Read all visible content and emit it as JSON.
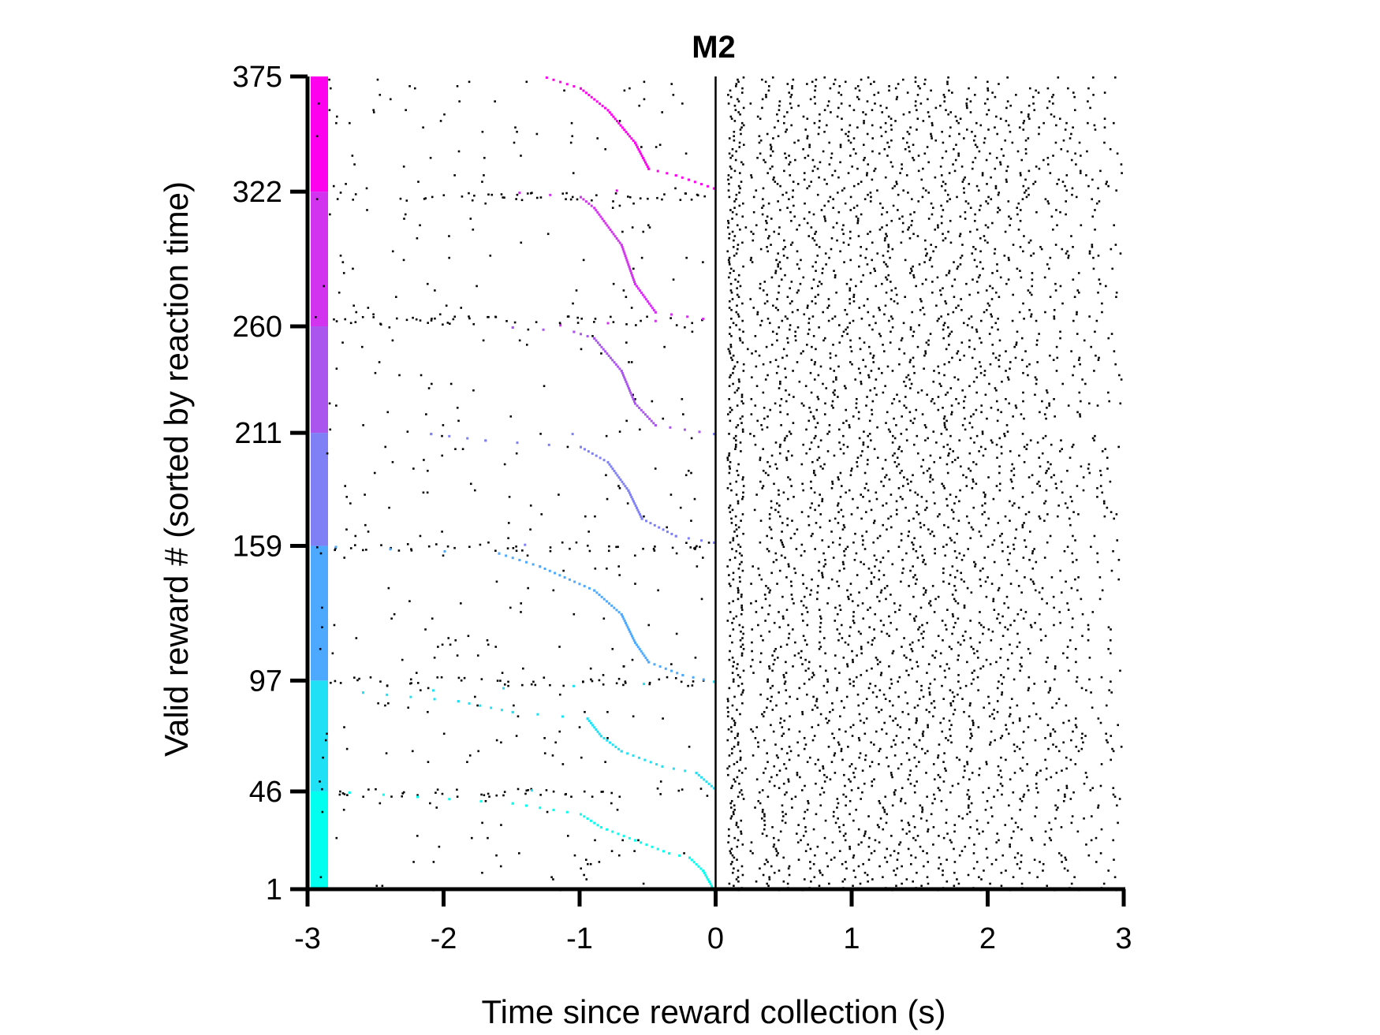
{
  "chart_data": {
    "type": "scatter",
    "title": "M2",
    "xlabel": "Time since reward collection (s)",
    "ylabel": "Valid reward # (sorted by reaction time)",
    "xlim": [
      -3,
      3
    ],
    "ylim": [
      1,
      375
    ],
    "x_ticks": [
      -3,
      -2,
      -1,
      0,
      1,
      2,
      3
    ],
    "x_tick_labels": [
      "-3",
      "-2",
      "-1",
      "0",
      "1",
      "2",
      "3"
    ],
    "y_ticks": [
      1,
      46,
      97,
      159,
      211,
      260,
      322,
      375
    ],
    "y_tick_labels": [
      "1",
      "46",
      "97",
      "159",
      "211",
      "260",
      "322",
      "375"
    ],
    "reference_line_x": 0,
    "grid": false,
    "legend": "none",
    "color_bar": {
      "position": "left edge of plot",
      "segments": [
        {
          "from": 1,
          "to": 46,
          "color": "#00ffee"
        },
        {
          "from": 46,
          "to": 97,
          "color": "#1fe0f5"
        },
        {
          "from": 97,
          "to": 159,
          "color": "#4da9ff"
        },
        {
          "from": 159,
          "to": 211,
          "color": "#7f7ff6"
        },
        {
          "from": 211,
          "to": 260,
          "color": "#aa55ee"
        },
        {
          "from": 260,
          "to": 322,
          "color": "#d233ee"
        },
        {
          "from": 322,
          "to": 375,
          "color": "#ff00ee"
        }
      ]
    },
    "series": [
      {
        "color": "#000000",
        "description_points": "spike raster; dense after x=0, sparse before",
        "x_range": [
          -3,
          3
        ],
        "y_range": [
          1,
          375
        ]
      }
    ],
    "event_curve": {
      "note": "colored points mark preceding event time per trial",
      "points": [
        [
          -0.02,
          1
        ],
        [
          -0.1,
          10
        ],
        [
          -0.2,
          16
        ],
        [
          -0.35,
          18
        ],
        [
          -0.6,
          24
        ],
        [
          -0.85,
          30
        ],
        [
          -1.0,
          36
        ],
        [
          -1.5,
          41
        ],
        [
          -2.2,
          44
        ],
        [
          -2.7,
          46
        ],
        [
          -0.02,
          48
        ],
        [
          -0.15,
          55
        ],
        [
          -0.4,
          58
        ],
        [
          -0.7,
          65
        ],
        [
          -0.85,
          72
        ],
        [
          -0.95,
          80
        ],
        [
          -1.5,
          83
        ],
        [
          -1.9,
          88
        ],
        [
          -2.6,
          92
        ],
        [
          -0.02,
          97
        ],
        [
          -0.25,
          100
        ],
        [
          -0.5,
          106
        ],
        [
          -0.6,
          115
        ],
        [
          -0.7,
          128
        ],
        [
          -0.9,
          139
        ],
        [
          -1.3,
          150
        ],
        [
          -1.6,
          156
        ],
        [
          -2.8,
          159
        ],
        [
          -0.02,
          161
        ],
        [
          -0.3,
          164
        ],
        [
          -0.55,
          172
        ],
        [
          -0.65,
          185
        ],
        [
          -0.8,
          198
        ],
        [
          -1.0,
          205
        ],
        [
          -1.7,
          208
        ],
        [
          -2.1,
          211
        ],
        [
          -0.02,
          211
        ],
        [
          -0.45,
          215
        ],
        [
          -0.6,
          225
        ],
        [
          -0.7,
          240
        ],
        [
          -0.9,
          255
        ],
        [
          -1.05,
          258
        ],
        [
          -1.5,
          260
        ],
        [
          -0.1,
          264
        ],
        [
          -0.45,
          267
        ],
        [
          -0.6,
          280
        ],
        [
          -0.7,
          298
        ],
        [
          -0.9,
          315
        ],
        [
          -1.0,
          320
        ],
        [
          -1.45,
          322
        ],
        [
          -0.02,
          324
        ],
        [
          -0.3,
          330
        ],
        [
          -0.5,
          333
        ],
        [
          -0.6,
          345
        ],
        [
          -0.8,
          360
        ],
        [
          -1.0,
          370
        ],
        [
          -1.25,
          375
        ]
      ]
    }
  }
}
